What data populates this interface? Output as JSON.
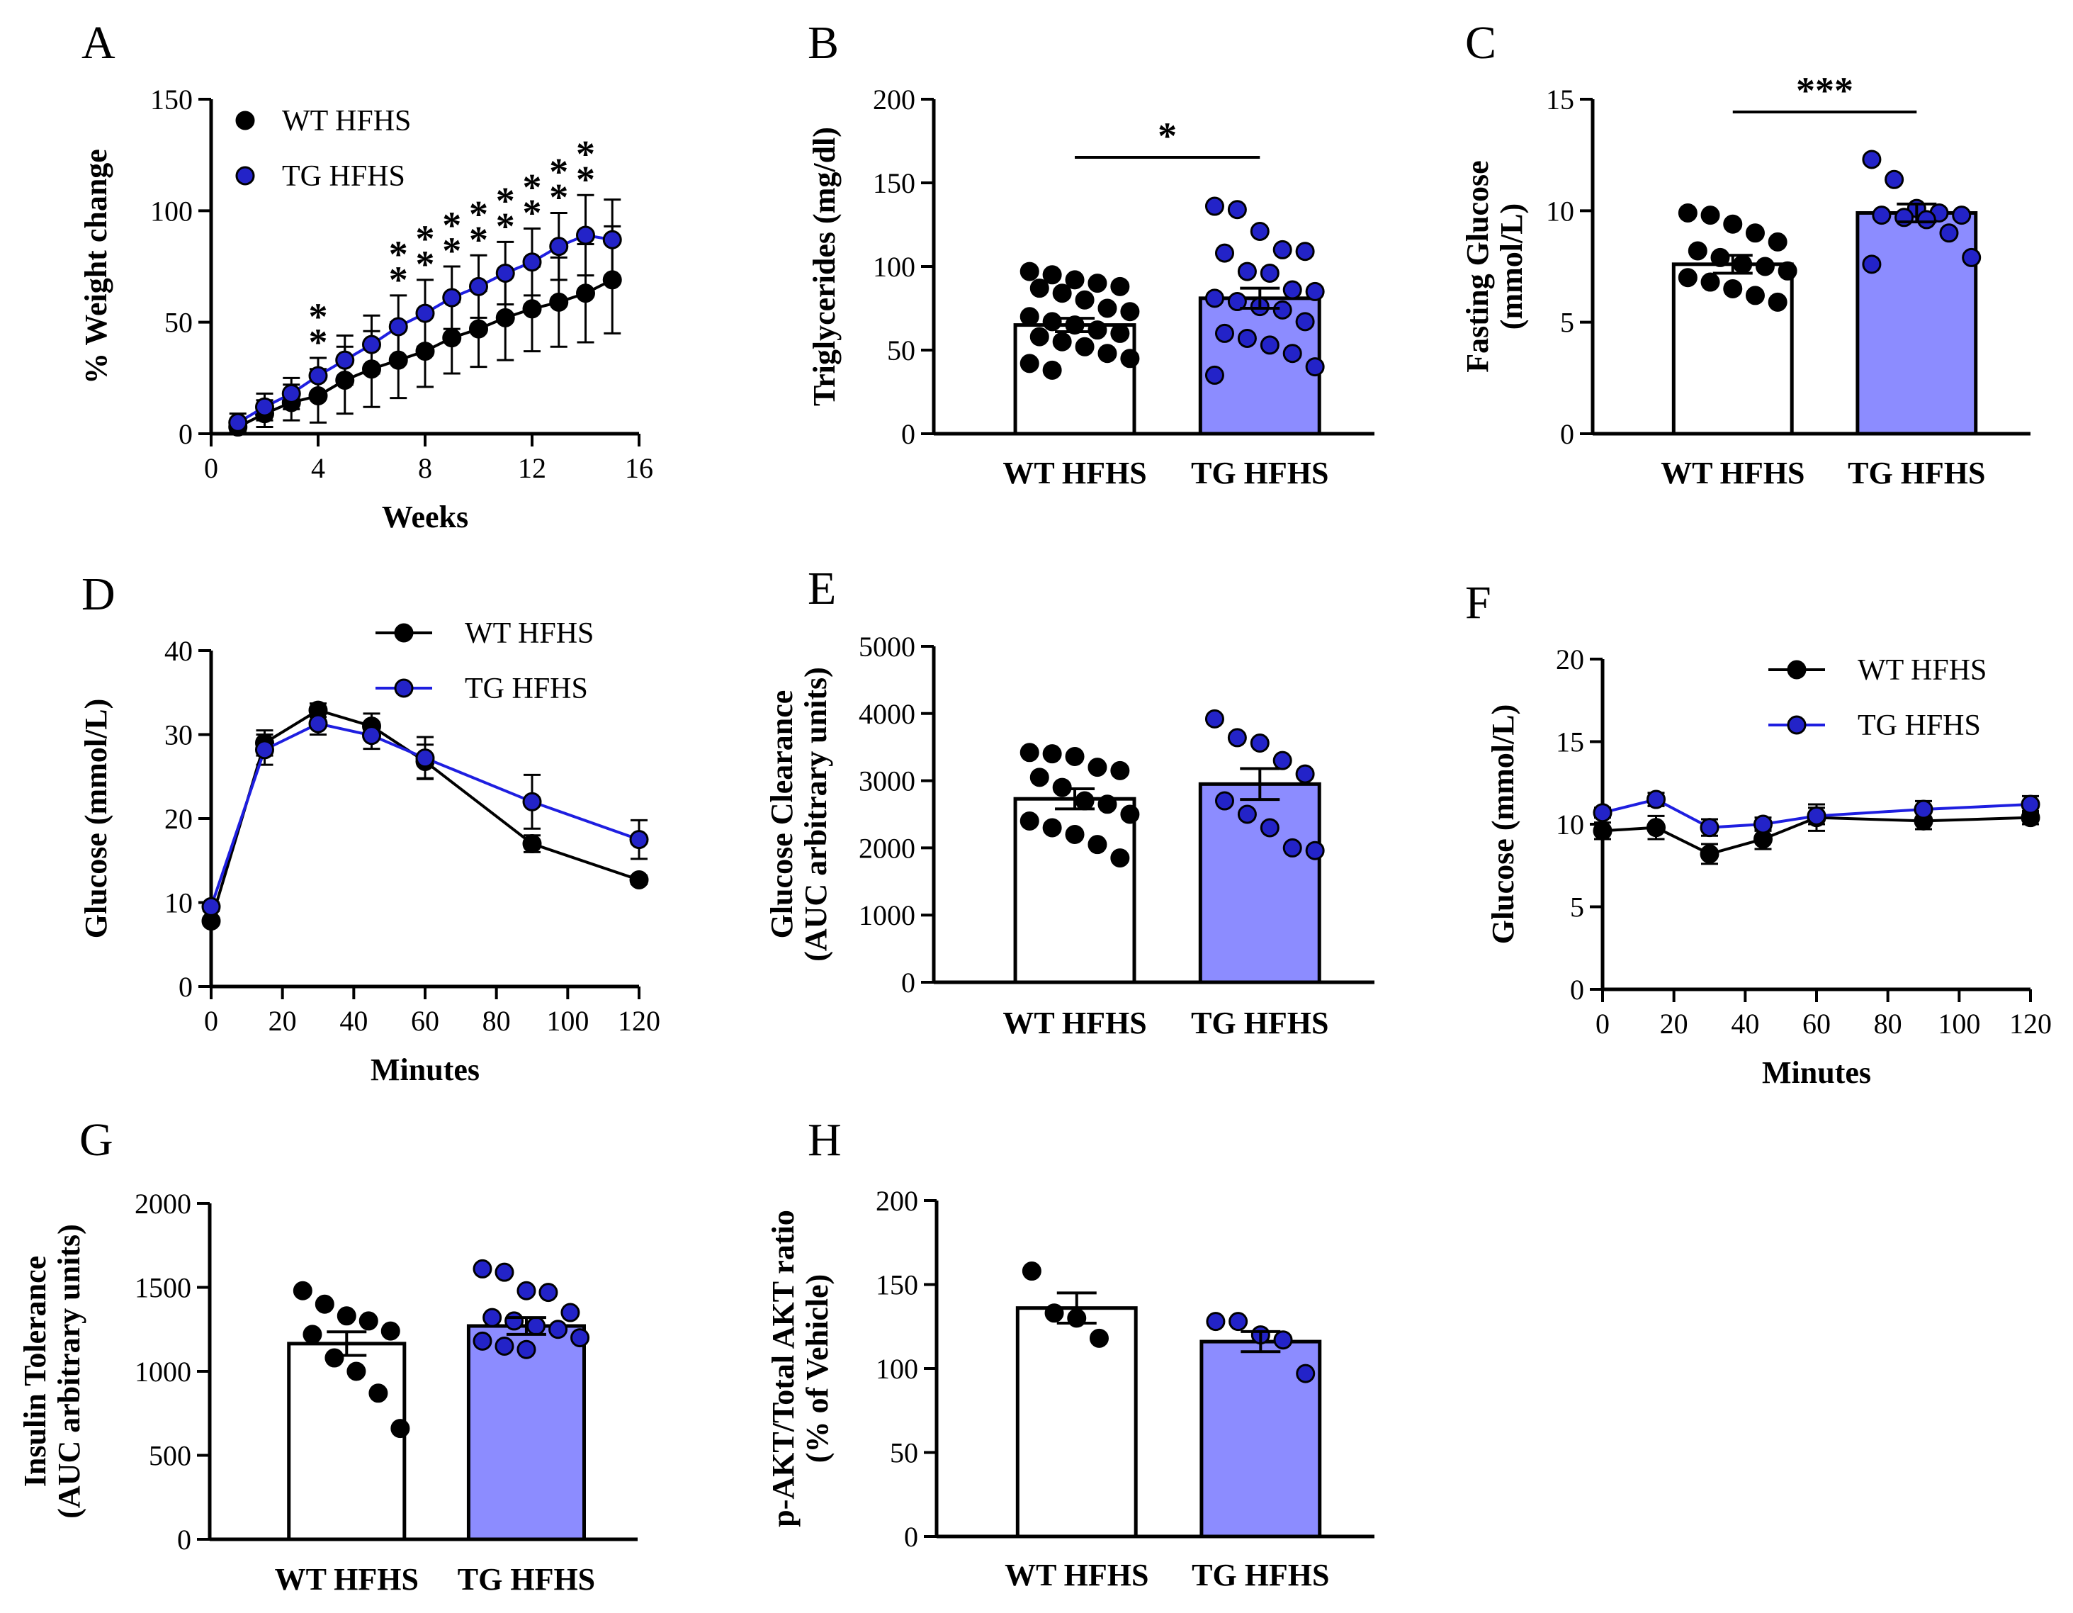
{
  "colors": {
    "wt": "#000000",
    "tg_marker": "#2323c8",
    "tg_line": "#1e1ee0",
    "tg_bar": "#8c8cff",
    "wt_bar": "#ffffff"
  },
  "legend": {
    "wt": "WT HFHS",
    "tg": "TG HFHS"
  },
  "chart_data": [
    {
      "id": "A",
      "type": "line",
      "letter": "A",
      "xlabel": "Weeks",
      "ylabel": "% Weight change",
      "xlim": [
        0,
        16
      ],
      "ylim": [
        0,
        150
      ],
      "xticks": [
        0,
        4,
        8,
        12,
        16
      ],
      "yticks": [
        0,
        50,
        100,
        150
      ],
      "x": [
        1,
        2,
        3,
        4,
        5,
        6,
        7,
        8,
        9,
        10,
        11,
        12,
        13,
        14,
        15
      ],
      "series": [
        {
          "name": "WT HFHS",
          "key": "wt",
          "values": [
            3,
            9,
            14,
            17,
            24,
            29,
            33,
            37,
            43,
            47,
            52,
            56,
            59,
            63,
            69
          ],
          "errors": [
            2,
            6,
            8,
            12,
            15,
            17,
            17,
            16,
            16,
            17,
            19,
            19,
            20,
            22,
            24
          ]
        },
        {
          "name": "TG HFHS",
          "key": "tg",
          "values": [
            5,
            12,
            18,
            26,
            33,
            40,
            48,
            54,
            61,
            66,
            72,
            77,
            84,
            89,
            87
          ],
          "errors": [
            4,
            6,
            7,
            8,
            11,
            13,
            14,
            15,
            14,
            14,
            14,
            15,
            15,
            18,
            18
          ]
        }
      ],
      "significance": [
        {
          "x": 4,
          "label": "**"
        },
        {
          "x": 7,
          "label": "**"
        },
        {
          "x": 8,
          "label": "**"
        },
        {
          "x": 9,
          "label": "**"
        },
        {
          "x": 10,
          "label": "**"
        },
        {
          "x": 11,
          "label": "**"
        },
        {
          "x": 12,
          "label": "**"
        },
        {
          "x": 13,
          "label": "**"
        },
        {
          "x": 14,
          "label": "**"
        }
      ],
      "legend_position": "top-left"
    },
    {
      "id": "B",
      "type": "bar",
      "letter": "B",
      "ylabel": "Triglycerides (mg/dl)",
      "ylim": [
        0,
        200
      ],
      "yticks": [
        0,
        50,
        100,
        150,
        200
      ],
      "categories": [
        "WT HFHS",
        "TG HFHS"
      ],
      "values": [
        65,
        81
      ],
      "errors": [
        4,
        6
      ],
      "points": [
        [
          97,
          95,
          92,
          90,
          88,
          87,
          84,
          80,
          75,
          73,
          70,
          67,
          65,
          62,
          60,
          58,
          55,
          52,
          48,
          45,
          42,
          38
        ],
        [
          136,
          134,
          121,
          110,
          109,
          108,
          97,
          96,
          86,
          85,
          81,
          79,
          76,
          74,
          67,
          60,
          57,
          53,
          48,
          40,
          35
        ]
      ],
      "significance": {
        "label": "*"
      }
    },
    {
      "id": "C",
      "type": "bar",
      "letter": "C",
      "ylabel_lines": [
        "Fasting Glucose",
        "(mmol/L)"
      ],
      "ylim": [
        0,
        15
      ],
      "yticks": [
        0,
        5,
        10,
        15
      ],
      "categories": [
        "WT HFHS",
        "TG HFHS"
      ],
      "values": [
        7.6,
        9.9
      ],
      "errors": [
        0.4,
        0.4
      ],
      "points": [
        [
          9.9,
          9.8,
          9.4,
          9.0,
          8.6,
          8.2,
          7.9,
          7.6,
          7.5,
          7.3,
          7.0,
          6.8,
          6.5,
          6.2,
          5.9
        ],
        [
          12.3,
          11.4,
          10.1,
          9.9,
          9.8,
          9.8,
          9.7,
          9.6,
          9.0,
          7.9,
          7.6
        ]
      ],
      "significance": {
        "label": "***"
      }
    },
    {
      "id": "D",
      "type": "line",
      "letter": "D",
      "xlabel": "Minutes",
      "ylabel": "Glucose (mmol/L)",
      "xlim": [
        0,
        120
      ],
      "ylim": [
        0,
        40
      ],
      "xticks": [
        0,
        20,
        40,
        60,
        80,
        100,
        120
      ],
      "yticks": [
        0,
        10,
        20,
        30,
        40
      ],
      "x": [
        0,
        15,
        30,
        45,
        60,
        90,
        120
      ],
      "series": [
        {
          "name": "WT HFHS",
          "key": "wt",
          "values": [
            7.8,
            29.0,
            32.9,
            31.0,
            26.8,
            17.0,
            12.7
          ],
          "errors": [
            0.4,
            1.5,
            0.8,
            1.5,
            2.0,
            1.0,
            0.5
          ]
        },
        {
          "name": "TG HFHS",
          "key": "tg",
          "values": [
            9.5,
            28.2,
            31.3,
            29.9,
            27.2,
            22.0,
            17.5
          ],
          "errors": [
            0.5,
            1.8,
            1.3,
            1.6,
            2.5,
            3.2,
            2.3
          ]
        }
      ],
      "legend_position": "top-right"
    },
    {
      "id": "E",
      "type": "bar",
      "letter": "E",
      "ylabel_lines": [
        "Glucose Clearance",
        "(AUC arbitrary units)"
      ],
      "ylim": [
        0,
        5000
      ],
      "yticks": [
        0,
        1000,
        2000,
        3000,
        4000,
        5000
      ],
      "categories": [
        "WT HFHS",
        "TG HFHS"
      ],
      "values": [
        2730,
        2950
      ],
      "errors": [
        150,
        230
      ],
      "points": [
        [
          3420,
          3400,
          3360,
          3200,
          3150,
          3050,
          2900,
          2700,
          2650,
          2500,
          2400,
          2300,
          2200,
          2050,
          1850
        ],
        [
          3920,
          3640,
          3560,
          3300,
          3100,
          2700,
          2500,
          2300,
          2000,
          1960
        ]
      ]
    },
    {
      "id": "F",
      "type": "line",
      "letter": "F",
      "xlabel": "Minutes",
      "ylabel": "Glucose (mmol/L)",
      "xlim": [
        0,
        120
      ],
      "ylim": [
        0,
        20
      ],
      "xticks": [
        0,
        20,
        40,
        60,
        80,
        100,
        120
      ],
      "yticks": [
        0,
        5,
        10,
        15,
        20
      ],
      "x": [
        0,
        15,
        30,
        45,
        60,
        90,
        120
      ],
      "series": [
        {
          "name": "WT HFHS",
          "key": "wt",
          "values": [
            9.6,
            9.8,
            8.2,
            9.1,
            10.4,
            10.2,
            10.4
          ],
          "errors": [
            0.5,
            0.7,
            0.6,
            0.6,
            0.8,
            0.5,
            0.4
          ]
        },
        {
          "name": "TG HFHS",
          "key": "tg",
          "values": [
            10.7,
            11.5,
            9.8,
            10.0,
            10.5,
            10.9,
            11.2
          ],
          "errors": [
            0.3,
            0.4,
            0.5,
            0.4,
            0.5,
            0.5,
            0.5
          ]
        }
      ],
      "legend_position": "top-right"
    },
    {
      "id": "G",
      "type": "bar",
      "letter": "G",
      "ylabel_lines": [
        "Insulin Tolerance",
        "(AUC arbitrary units)"
      ],
      "ylim": [
        0,
        2000
      ],
      "yticks": [
        0,
        500,
        1000,
        1500,
        2000
      ],
      "categories": [
        "WT HFHS",
        "TG HFHS"
      ],
      "values": [
        1165,
        1270
      ],
      "errors": [
        70,
        50
      ],
      "points": [
        [
          1480,
          1400,
          1330,
          1300,
          1240,
          1220,
          1080,
          1000,
          870,
          660
        ],
        [
          1610,
          1590,
          1480,
          1470,
          1350,
          1320,
          1300,
          1270,
          1250,
          1200,
          1180,
          1150,
          1130
        ]
      ]
    },
    {
      "id": "H",
      "type": "bar",
      "letter": "H",
      "ylabel_lines": [
        "p-AKT/Total AKT ratio",
        "(% of Vehicle)"
      ],
      "ylim": [
        0,
        200
      ],
      "yticks": [
        0,
        50,
        100,
        150,
        200
      ],
      "categories": [
        "WT HFHS",
        "TG HFHS"
      ],
      "values": [
        136,
        116
      ],
      "errors": [
        9,
        6
      ],
      "points": [
        [
          158,
          133,
          130,
          118
        ],
        [
          128,
          128,
          120,
          117,
          97
        ]
      ]
    }
  ]
}
